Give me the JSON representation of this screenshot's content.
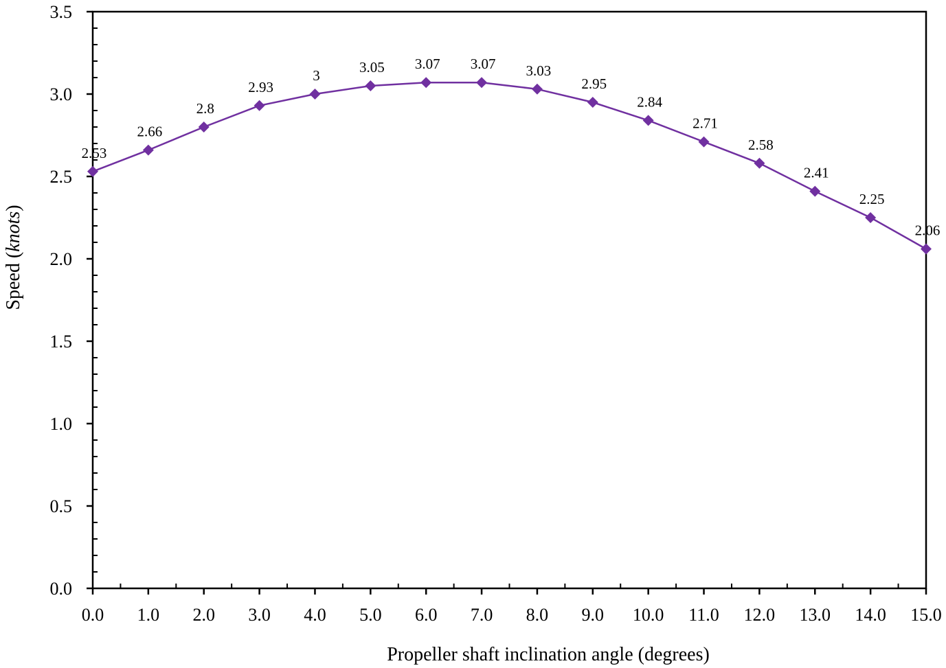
{
  "chart_data": {
    "type": "line",
    "title": "",
    "xlabel": "Propeller shaft inclination angle (degrees)",
    "ylabel_prefix": "Speed (",
    "ylabel_italic": "knots",
    "ylabel_suffix": ")",
    "ylabel": "Speed (knots)",
    "xlim": [
      0,
      15
    ],
    "ylim": [
      0,
      3.5
    ],
    "grid": false,
    "legend": "none",
    "x_ticks": [
      "0.0",
      "1.0",
      "2.0",
      "3.0",
      "4.0",
      "5.0",
      "6.0",
      "7.0",
      "8.0",
      "9.0",
      "10.0",
      "11.0",
      "12.0",
      "13.0",
      "14.0",
      "15.0"
    ],
    "y_ticks": [
      "0.0",
      "0.5",
      "1.0",
      "1.5",
      "2.0",
      "2.5",
      "3.0",
      "3.5"
    ],
    "color": "#7030A0",
    "marker": "diamond",
    "series": [
      {
        "name": "Speed",
        "x": [
          0,
          1,
          2,
          3,
          4,
          5,
          6,
          7,
          8,
          9,
          10,
          11,
          12,
          13,
          14,
          15
        ],
        "values": [
          2.53,
          2.66,
          2.8,
          2.93,
          3,
          3.05,
          3.07,
          3.07,
          3.03,
          2.95,
          2.84,
          2.71,
          2.58,
          2.41,
          2.25,
          2.06
        ],
        "labels": [
          "2.53",
          "2.66",
          "2.8",
          "2.93",
          "3",
          "3.05",
          "3.07",
          "3.07",
          "3.03",
          "2.95",
          "2.84",
          "2.71",
          "2.58",
          "2.41",
          "2.25",
          "2.06"
        ]
      }
    ]
  }
}
